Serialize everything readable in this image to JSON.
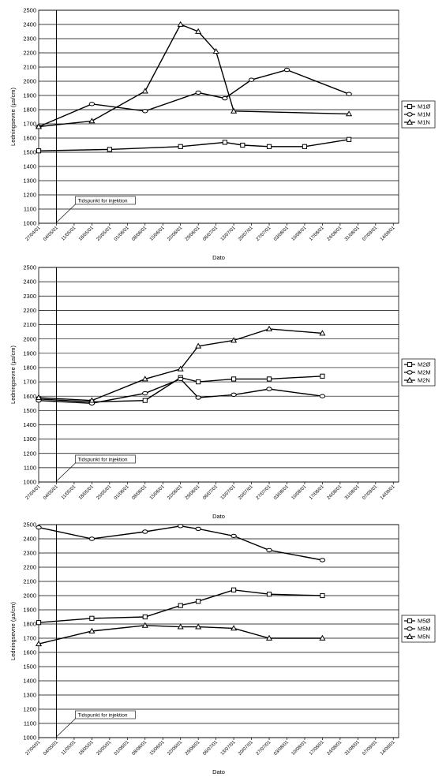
{
  "chart_data": [
    {
      "type": "line",
      "ylabel": "Ledningsevne (µs/cm)",
      "xlabel": "Dato",
      "ylim": [
        1000,
        2500
      ],
      "ystep": 100,
      "grid": true,
      "legend_position": "right",
      "x_tick_labels": [
        "27/04/01",
        "04/05/01",
        "11/05/01",
        "18/05/01",
        "25/05/01",
        "01/06/01",
        "08/06/01",
        "15/06/01",
        "22/06/01",
        "29/06/01",
        "06/07/01",
        "13/07/01",
        "20/07/01",
        "27/07/01",
        "03/08/01",
        "10/08/01",
        "17/08/01",
        "24/08/01",
        "31/08/01",
        "07/09/01",
        "14/09/01"
      ],
      "annotation": {
        "text": "Tidspunkt for injektion",
        "date_index": 1
      },
      "series": [
        {
          "name": "M1Ø",
          "marker": "square",
          "x": [
            0,
            4,
            8,
            10.5,
            11.5,
            13,
            15,
            17.5
          ],
          "values": [
            1510,
            1520,
            1540,
            1570,
            1550,
            1540,
            1540,
            1590
          ]
        },
        {
          "name": "M1M",
          "marker": "circle",
          "x": [
            0,
            3,
            6,
            9,
            10.5,
            12,
            14,
            17.5
          ],
          "values": [
            1680,
            1840,
            1790,
            1920,
            1880,
            2010,
            2080,
            1910
          ]
        },
        {
          "name": "M1N",
          "marker": "triangle",
          "x": [
            0,
            3,
            6,
            8,
            9,
            10,
            11,
            17.5
          ],
          "values": [
            1680,
            1720,
            1930,
            2400,
            2350,
            2210,
            1790,
            1770
          ]
        }
      ]
    },
    {
      "type": "line",
      "ylabel": "Ledningsevne (µs/cm)",
      "xlabel": "Dato",
      "ylim": [
        1000,
        2500
      ],
      "ystep": 100,
      "grid": true,
      "legend_position": "right",
      "x_tick_labels": [
        "27/04/01",
        "04/05/01",
        "11/05/01",
        "18/05/01",
        "25/05/01",
        "01/06/01",
        "08/06/01",
        "15/06/01",
        "22/06/01",
        "29/06/01",
        "06/07/01",
        "13/07/01",
        "20/07/01",
        "27/07/01",
        "03/08/01",
        "10/08/01",
        "17/08/01",
        "24/08/01",
        "31/08/01",
        "07/09/01",
        "14/09/01"
      ],
      "annotation": {
        "text": "Tidspunkt for injektion",
        "date_index": 1
      },
      "series": [
        {
          "name": "M2Ø",
          "marker": "square",
          "x": [
            0,
            3,
            6,
            8,
            9,
            11,
            13,
            16
          ],
          "values": [
            1580,
            1560,
            1570,
            1730,
            1700,
            1720,
            1720,
            1740
          ]
        },
        {
          "name": "M2M",
          "marker": "circle",
          "x": [
            0,
            3,
            6,
            8,
            9,
            11,
            13,
            16
          ],
          "values": [
            1570,
            1550,
            1620,
            1720,
            1590,
            1610,
            1650,
            1600
          ]
        },
        {
          "name": "M2N",
          "marker": "triangle",
          "x": [
            0,
            3,
            6,
            8,
            9,
            11,
            13,
            16
          ],
          "values": [
            1590,
            1570,
            1720,
            1790,
            1950,
            1990,
            2070,
            2040
          ]
        }
      ]
    },
    {
      "type": "line",
      "ylabel": "Ledningsevne (µs/cm)",
      "xlabel": "Dato",
      "ylim": [
        1000,
        2500
      ],
      "ystep": 100,
      "grid": true,
      "legend_position": "right",
      "x_tick_labels": [
        "27/04/01",
        "04/05/01",
        "11/05/01",
        "18/05/01",
        "25/05/01",
        "01/06/01",
        "08/06/01",
        "15/06/01",
        "22/06/01",
        "29/06/01",
        "06/07/01",
        "13/07/01",
        "20/07/01",
        "27/07/01",
        "03/08/01",
        "10/08/01",
        "17/08/01",
        "24/08/01",
        "31/08/01",
        "07/09/01",
        "14/09/01"
      ],
      "annotation": {
        "text": "Tidspunkt for injektion",
        "date_index": 1
      },
      "series": [
        {
          "name": "M5Ø",
          "marker": "square",
          "x": [
            0,
            3,
            6,
            8,
            9,
            11,
            13,
            16
          ],
          "values": [
            1810,
            1840,
            1850,
            1930,
            1960,
            2040,
            2010,
            2000
          ]
        },
        {
          "name": "M5M",
          "marker": "circle",
          "x": [
            0,
            3,
            6,
            8,
            9,
            11,
            13,
            16
          ],
          "values": [
            2480,
            2400,
            2450,
            2490,
            2470,
            2420,
            2320,
            2250
          ]
        },
        {
          "name": "M5N",
          "marker": "triangle",
          "x": [
            0,
            3,
            6,
            8,
            9,
            11,
            13,
            16
          ],
          "values": [
            1660,
            1750,
            1790,
            1780,
            1780,
            1770,
            1700,
            1700
          ]
        }
      ]
    }
  ]
}
